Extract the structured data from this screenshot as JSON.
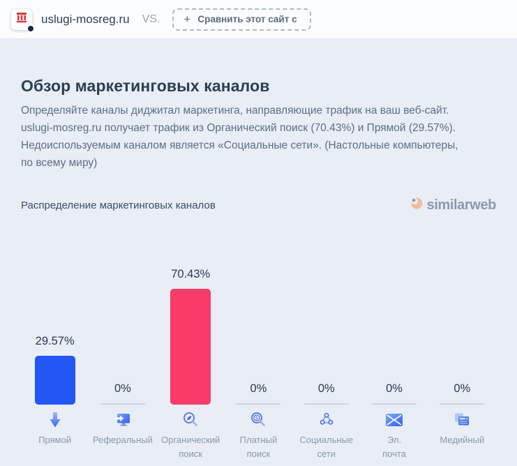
{
  "header": {
    "site_domain": "uslugi-mosreg.ru",
    "vs_label": "VS.",
    "compare_plus": "+",
    "compare_button_label": "Сравнить этот сайт с",
    "favicon": "government-building-icon"
  },
  "overview": {
    "title": "Обзор маркетинговых каналов",
    "description": "Определяйте каналы диджитал маркетинга, направляющие трафик на ваш веб-сайт. uslugi-mosreg.ru получает трафик из Органический поиск (70.43%) и Прямой (29.57%). Недоиспользуемым каналом является «Социальные сети». (Настольные компьютеры, по всему миру)"
  },
  "chart_section": {
    "title": "Распределение маркетинговых каналов",
    "brand_wordmark": "similarweb",
    "brand_icon": "similarweb-swirl-icon"
  },
  "chart_data": {
    "type": "bar",
    "title": "Распределение маркетинговых каналов",
    "unit": "%",
    "ylim": [
      0,
      100
    ],
    "grid": false,
    "legend": "none",
    "categories": [
      "Прямой",
      "Реферальный",
      "Органический\nпоиск",
      "Платный\nпоиск",
      "Социальные\nсети",
      "Эл.\nпочта",
      "Медийный"
    ],
    "values": [
      29.57,
      0,
      70.43,
      0,
      0,
      0,
      0
    ],
    "value_labels": [
      "29.57%",
      "0%",
      "70.43%",
      "0%",
      "0%",
      "0%",
      "0%"
    ],
    "bar_colors": [
      "#2356f6",
      null,
      "#f83b68",
      null,
      null,
      null,
      null
    ],
    "icons": [
      "direct-arrow-down-icon",
      "referral-monitor-icon",
      "organic-search-icon",
      "paid-search-icon",
      "social-network-icon",
      "email-envelope-icon",
      "display-ads-icon"
    ]
  },
  "colors": {
    "direct_bar": "#2356f6",
    "organic_bar": "#f83b68",
    "zero_baseline": "#cbd3e1",
    "page_background": "#e9edf6"
  }
}
